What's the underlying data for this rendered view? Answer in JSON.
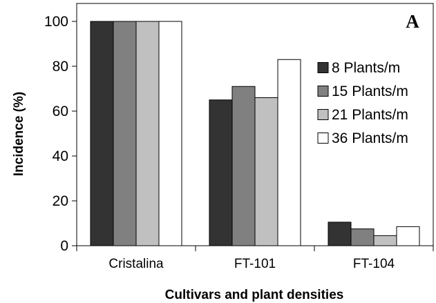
{
  "chart_data": {
    "type": "bar",
    "panel_label": "A",
    "xlabel": "Cultivars and plant densities",
    "ylabel": "Incidence (%)",
    "ylim": [
      0,
      100
    ],
    "yticks": [
      0,
      20,
      40,
      60,
      80,
      100
    ],
    "categories": [
      "Cristalina",
      "FT-101",
      "FT-104"
    ],
    "series": [
      {
        "name": "8 Plants/m",
        "color": "#333333",
        "values": [
          100,
          65,
          10.5
        ]
      },
      {
        "name": "15 Plants/m",
        "color": "#808080",
        "values": [
          100,
          71,
          7.5
        ]
      },
      {
        "name": "21 Plants/m",
        "color": "#c0c0c0",
        "values": [
          100,
          66,
          4.5
        ]
      },
      {
        "name": "36 Plants/m",
        "color": "#ffffff",
        "values": [
          100,
          83,
          8.5
        ]
      }
    ],
    "legend_position": "right",
    "grid": false
  }
}
